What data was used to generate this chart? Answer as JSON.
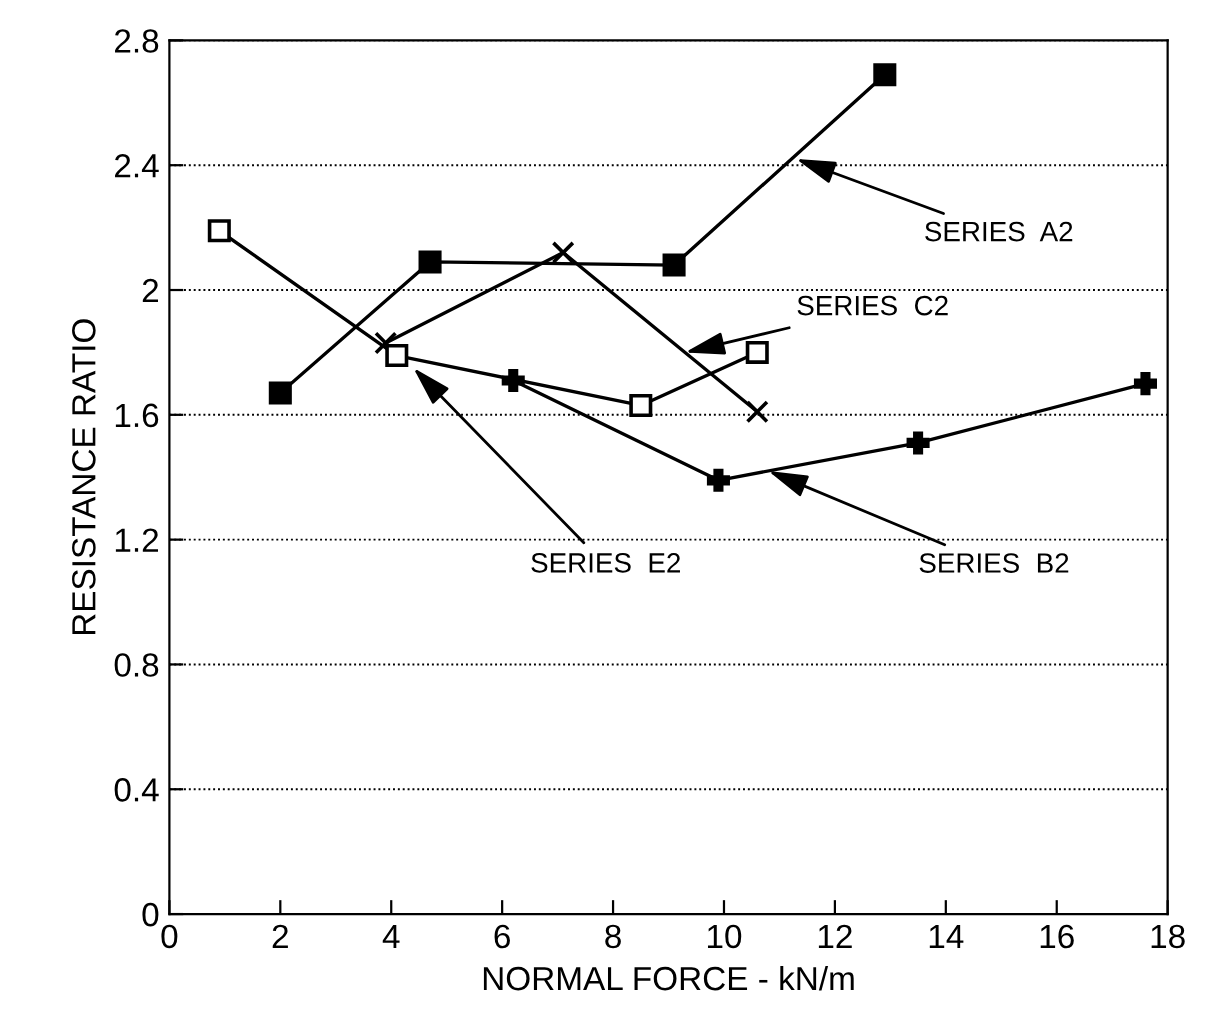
{
  "chart_data": {
    "type": "line",
    "xlabel": "NORMAL FORCE - kN/m",
    "ylabel": "RESISTANCE RATIO",
    "xlim": [
      0,
      18
    ],
    "xticks": [
      0,
      2,
      4,
      6,
      8,
      10,
      12,
      14,
      16,
      18
    ],
    "ylim": [
      0,
      2.8
    ],
    "yticks": [
      0,
      {
        "value": 0.4,
        "label": "0.4"
      },
      {
        "value": 0.8,
        "label": "0.8"
      },
      {
        "value": 1.2,
        "label": "1.2"
      },
      {
        "value": 1.6,
        "label": "1.6"
      },
      {
        "value": 2,
        "label": "2"
      },
      {
        "value": 2.4,
        "label": "2.4"
      },
      {
        "value": 2.8,
        "label": "2.8"
      }
    ],
    "grid": "y",
    "legend": false,
    "line_style": "solid",
    "series": [
      {
        "color": "#000000",
        "marker": "square",
        "x": [
          2,
          4.7,
          9.1,
          12.9
        ],
        "values": [
          1.67,
          2.09,
          2.08,
          2.69
        ]
      },
      {
        "color": "#000000",
        "marker": "cross",
        "x": [
          3.9,
          7.1,
          10.6
        ],
        "values": [
          1.83,
          2.12,
          1.61
        ]
      },
      {
        "color": "#000000",
        "marker": "square_open",
        "x": [
          0.9,
          4.1,
          8.5,
          10.6
        ],
        "values": [
          2.19,
          1.79,
          1.63,
          1.8
        ]
      },
      {
        "color": "#000000",
        "marker": "plus",
        "x": [
          6.2,
          9.9,
          13.5,
          17.6
        ],
        "values": [
          1.71,
          1.39,
          1.51,
          1.7
        ]
      }
    ],
    "annotations": [
      {
        "text": "SERIES  A2",
        "x": 11.3,
        "y": 2.42
      },
      {
        "text": "SERIES  C2",
        "x": 9.3,
        "y": 1.8
      },
      {
        "text": "SERIES  E2",
        "x": 4.4,
        "y": 1.75
      },
      {
        "text": "SERIES  B2",
        "x": 10.8,
        "y": 1.42
      }
    ]
  }
}
